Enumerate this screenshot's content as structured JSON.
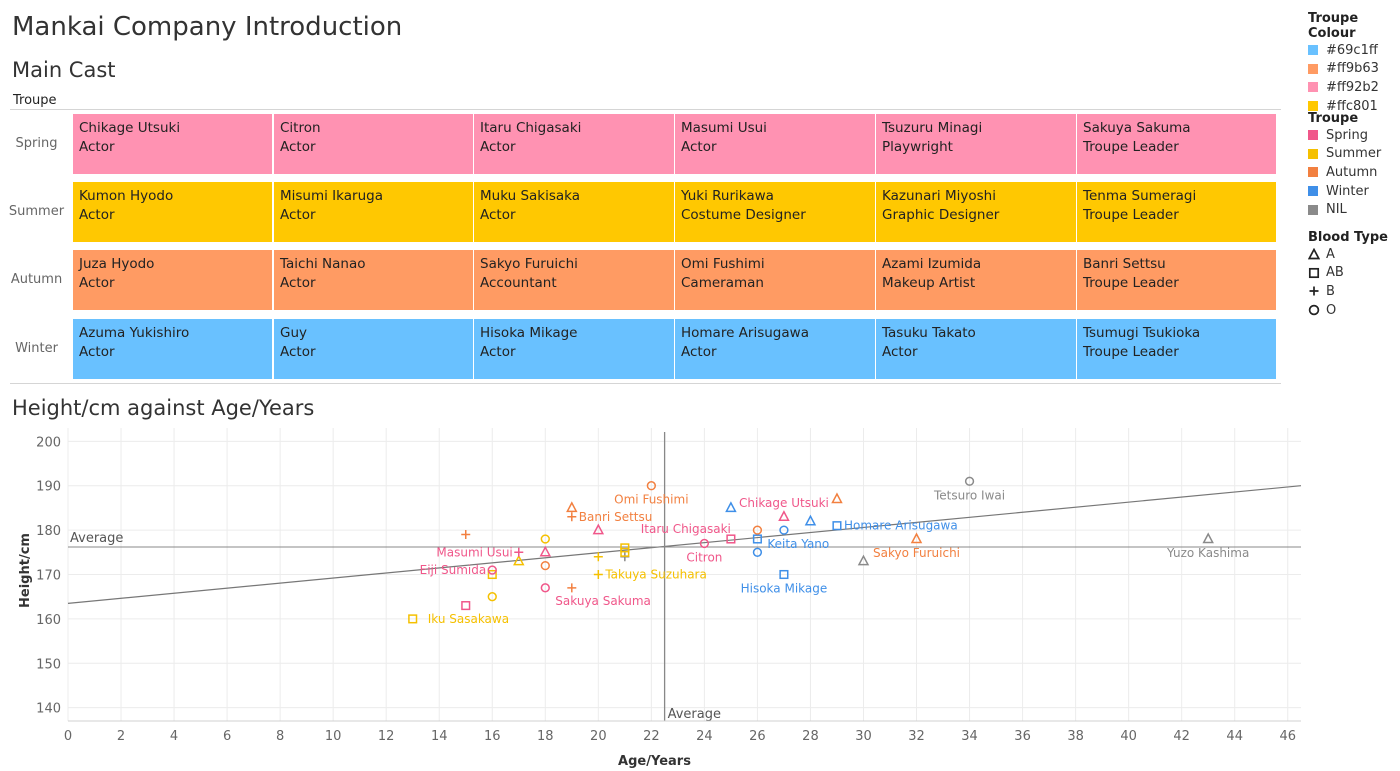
{
  "title": "Mankai Company Introduction",
  "cast_section": {
    "title": "Main Cast",
    "column_header": "Troupe",
    "troupes": [
      {
        "name": "Spring",
        "color": "#ff92b2",
        "members": [
          {
            "name": "Chikage Utsuki",
            "role": "Actor"
          },
          {
            "name": "Citron",
            "role": "Actor"
          },
          {
            "name": "Itaru Chigasaki",
            "role": "Actor"
          },
          {
            "name": "Masumi Usui",
            "role": "Actor"
          },
          {
            "name": "Tsuzuru Minagi",
            "role": "Playwright"
          },
          {
            "name": "Sakuya Sakuma",
            "role": "Troupe Leader"
          }
        ]
      },
      {
        "name": "Summer",
        "color": "#ffc801",
        "members": [
          {
            "name": "Kumon Hyodo",
            "role": "Actor"
          },
          {
            "name": "Misumi Ikaruga",
            "role": "Actor"
          },
          {
            "name": "Muku Sakisaka",
            "role": "Actor"
          },
          {
            "name": "Yuki Rurikawa",
            "role": "Costume Designer"
          },
          {
            "name": "Kazunari Miyoshi",
            "role": "Graphic Designer"
          },
          {
            "name": "Tenma Sumeragi",
            "role": "Troupe Leader"
          }
        ]
      },
      {
        "name": "Autumn",
        "color": "#ff9b63",
        "members": [
          {
            "name": "Juza Hyodo",
            "role": "Actor"
          },
          {
            "name": "Taichi Nanao",
            "role": "Actor"
          },
          {
            "name": "Sakyo Furuichi",
            "role": "Accountant"
          },
          {
            "name": "Omi Fushimi",
            "role": "Cameraman"
          },
          {
            "name": "Azami Izumida",
            "role": "Makeup Artist"
          },
          {
            "name": "Banri Settsu",
            "role": "Troupe Leader"
          }
        ]
      },
      {
        "name": "Winter",
        "color": "#69c1ff",
        "members": [
          {
            "name": "Azuma Yukishiro",
            "role": "Actor"
          },
          {
            "name": "Guy",
            "role": "Actor"
          },
          {
            "name": "Hisoka Mikage",
            "role": "Actor"
          },
          {
            "name": "Homare Arisugawa",
            "role": "Actor"
          },
          {
            "name": "Tasuku Takato",
            "role": "Actor"
          },
          {
            "name": "Tsumugi Tsukioka",
            "role": "Troupe Leader"
          }
        ]
      }
    ]
  },
  "legend": {
    "troupe_colour": {
      "title": "Troupe Colour",
      "items": [
        "#69c1ff",
        "#ff9b63",
        "#ff92b2",
        "#ffc801"
      ]
    },
    "troupe": {
      "title": "Troupe",
      "items": [
        {
          "label": "Spring",
          "color": "#f0578a"
        },
        {
          "label": "Summer",
          "color": "#f5c000"
        },
        {
          "label": "Autumn",
          "color": "#f28040"
        },
        {
          "label": "Winter",
          "color": "#3f8fe8"
        },
        {
          "label": "NIL",
          "color": "#8a8a8a"
        }
      ]
    },
    "blood_type": {
      "title": "Blood Type",
      "items": [
        {
          "label": "A",
          "shape": "triangle"
        },
        {
          "label": "AB",
          "shape": "square"
        },
        {
          "label": "B",
          "shape": "plus"
        },
        {
          "label": "O",
          "shape": "circle"
        }
      ]
    }
  },
  "chart_data": {
    "type": "scatter",
    "title": "Height/cm against Age/Years",
    "xlabel": "Age/Years",
    "ylabel": "Height/cm",
    "xlim": [
      0,
      46.5
    ],
    "ylim": [
      137,
      203
    ],
    "x_ticks": [
      0,
      2,
      4,
      6,
      8,
      10,
      12,
      14,
      16,
      18,
      20,
      22,
      24,
      26,
      28,
      30,
      32,
      34,
      36,
      38,
      40,
      42,
      44,
      46
    ],
    "y_ticks": [
      140,
      150,
      160,
      170,
      180,
      190,
      200
    ],
    "grid": true,
    "reference_lines": {
      "x_average": 22.5,
      "y_average": 176.2,
      "label": "Average"
    },
    "trend_line": {
      "x": [
        0,
        46.5
      ],
      "y": [
        163.5,
        190
      ]
    },
    "troupe_colors": {
      "Spring": "#f0578a",
      "Summer": "#f5c000",
      "Autumn": "#f28040",
      "Winter": "#3f8fe8",
      "NIL": "#8a8a8a"
    },
    "points": [
      {
        "x": 13,
        "y": 160,
        "troupe": "Summer",
        "blood": "AB",
        "label": "Iku Sasakawa"
      },
      {
        "x": 15,
        "y": 163,
        "troupe": "Spring",
        "blood": "AB",
        "label": ""
      },
      {
        "x": 15,
        "y": 179,
        "troupe": "Autumn",
        "blood": "B",
        "label": ""
      },
      {
        "x": 16,
        "y": 165,
        "troupe": "Summer",
        "blood": "O",
        "label": ""
      },
      {
        "x": 16,
        "y": 170,
        "troupe": "Summer",
        "blood": "AB",
        "label": ""
      },
      {
        "x": 16,
        "y": 171,
        "troupe": "Spring",
        "blood": "O",
        "label": "Eiji Sumida"
      },
      {
        "x": 17,
        "y": 173,
        "troupe": "Summer",
        "blood": "A",
        "label": ""
      },
      {
        "x": 17,
        "y": 175,
        "troupe": "Spring",
        "blood": "B",
        "label": "Masumi Usui"
      },
      {
        "x": 18,
        "y": 167,
        "troupe": "Spring",
        "blood": "O",
        "label": "Sakuya Sakuma"
      },
      {
        "x": 18,
        "y": 172,
        "troupe": "Autumn",
        "blood": "O",
        "label": ""
      },
      {
        "x": 18,
        "y": 175,
        "troupe": "Spring",
        "blood": "A",
        "label": ""
      },
      {
        "x": 18,
        "y": 178,
        "troupe": "Summer",
        "blood": "O",
        "label": ""
      },
      {
        "x": 19,
        "y": 167,
        "troupe": "Autumn",
        "blood": "B",
        "label": ""
      },
      {
        "x": 19,
        "y": 183,
        "troupe": "Autumn",
        "blood": "B",
        "label": "Banri Settsu"
      },
      {
        "x": 19,
        "y": 185,
        "troupe": "Autumn",
        "blood": "A",
        "label": ""
      },
      {
        "x": 20,
        "y": 170,
        "troupe": "Summer",
        "blood": "B",
        "label": "Takuya Suzuhara"
      },
      {
        "x": 20,
        "y": 174,
        "troupe": "Summer",
        "blood": "B",
        "label": ""
      },
      {
        "x": 20,
        "y": 180,
        "troupe": "Spring",
        "blood": "A",
        "label": ""
      },
      {
        "x": 21,
        "y": 174,
        "troupe": "NIL",
        "blood": "B",
        "label": ""
      },
      {
        "x": 21,
        "y": 175,
        "troupe": "Summer",
        "blood": "AB",
        "label": ""
      },
      {
        "x": 21,
        "y": 176,
        "troupe": "Summer",
        "blood": "AB",
        "label": ""
      },
      {
        "x": 22,
        "y": 190,
        "troupe": "Autumn",
        "blood": "O",
        "label": "Omi Fushimi"
      },
      {
        "x": 24,
        "y": 177,
        "troupe": "Spring",
        "blood": "O",
        "label": "Citron"
      },
      {
        "x": 25,
        "y": 178,
        "troupe": "Spring",
        "blood": "AB",
        "label": "Itaru Chigasaki"
      },
      {
        "x": 25,
        "y": 185,
        "troupe": "Winter",
        "blood": "A",
        "label": ""
      },
      {
        "x": 26,
        "y": 175,
        "troupe": "Winter",
        "blood": "O",
        "label": ""
      },
      {
        "x": 26,
        "y": 178,
        "troupe": "Winter",
        "blood": "AB",
        "label": "Keita Yano"
      },
      {
        "x": 26,
        "y": 180,
        "troupe": "Autumn",
        "blood": "O",
        "label": ""
      },
      {
        "x": 27,
        "y": 170,
        "troupe": "Winter",
        "blood": "AB",
        "label": "Hisoka Mikage"
      },
      {
        "x": 27,
        "y": 180,
        "troupe": "Winter",
        "blood": "O",
        "label": ""
      },
      {
        "x": 27,
        "y": 183,
        "troupe": "Spring",
        "blood": "A",
        "label": "Chikage Utsuki"
      },
      {
        "x": 28,
        "y": 182,
        "troupe": "Winter",
        "blood": "A",
        "label": ""
      },
      {
        "x": 29,
        "y": 181,
        "troupe": "Winter",
        "blood": "AB",
        "label": "Homare Arisugawa"
      },
      {
        "x": 29,
        "y": 187,
        "troupe": "Autumn",
        "blood": "A",
        "label": ""
      },
      {
        "x": 30,
        "y": 173,
        "troupe": "NIL",
        "blood": "A",
        "label": ""
      },
      {
        "x": 32,
        "y": 178,
        "troupe": "Autumn",
        "blood": "A",
        "label": "Sakyo Furuichi"
      },
      {
        "x": 34,
        "y": 191,
        "troupe": "NIL",
        "blood": "O",
        "label": "Tetsuro Iwai"
      },
      {
        "x": 43,
        "y": 178,
        "troupe": "NIL",
        "blood": "A",
        "label": "Yuzo Kashima"
      }
    ]
  }
}
